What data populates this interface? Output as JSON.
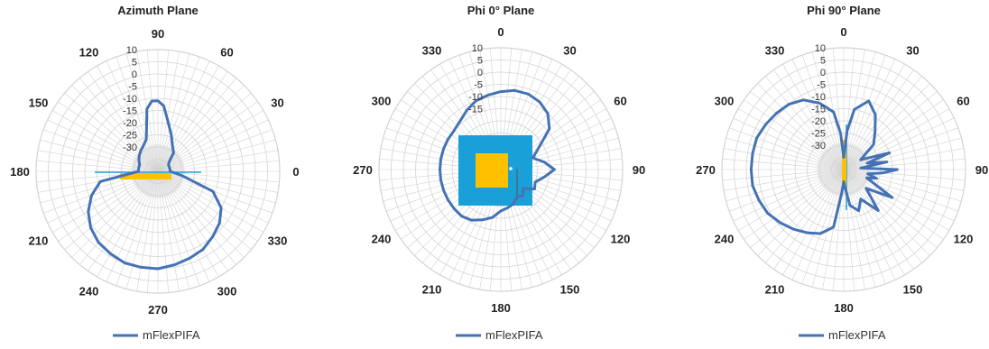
{
  "colors": {
    "trace": "#4472b4",
    "grid": "#d3d3d3",
    "inset_blue": "#1aa0d8",
    "inset_yellow": "#ffc000"
  },
  "chart_data": [
    {
      "type": "polar-line",
      "title": "Azimuth Plane",
      "radial_ticks": [
        "10",
        "5",
        "0",
        "-5",
        "-10",
        "-15",
        "-20",
        "-25",
        "-30"
      ],
      "rlim": [
        -40,
        10
      ],
      "angle_labels": [
        "90",
        "60",
        "30",
        "0",
        "330",
        "300",
        "270",
        "240",
        "210",
        "180",
        "150",
        "120"
      ],
      "legend": "mFlexPIFA",
      "series": [
        {
          "name": "mFlexPIFA",
          "angles": [
            0,
            10,
            20,
            30,
            40,
            50,
            60,
            70,
            80,
            85,
            90,
            95,
            100,
            105,
            110,
            120,
            130,
            140,
            150,
            160,
            170,
            180,
            190,
            200,
            210,
            220,
            230,
            240,
            250,
            260,
            270,
            280,
            290,
            300,
            310,
            320,
            330,
            340,
            350,
            360
          ],
          "values": [
            -35,
            -35,
            -35,
            -35,
            -34,
            -30,
            -28,
            -24,
            -18,
            -13,
            -11,
            -11,
            -14,
            -22,
            -26,
            -28,
            -29,
            -30,
            -31,
            -32,
            -32,
            -32,
            -16,
            -11,
            -7,
            -4,
            -2,
            -1,
            0,
            0,
            0,
            -1,
            -2,
            -3,
            -5,
            -7,
            -10,
            -16,
            -30,
            -35
          ]
        }
      ],
      "inset": "horizontal-bar"
    },
    {
      "type": "polar-line",
      "title": "Phi 0° Plane",
      "radial_ticks": [
        "10",
        "5",
        "0",
        "-5",
        "-10",
        "-15"
      ],
      "rlim": [
        -40,
        10
      ],
      "angle_labels": [
        "0",
        "30",
        "60",
        "90",
        "120",
        "150",
        "180",
        "210",
        "240",
        "270",
        "300",
        "330"
      ],
      "legend": "mFlexPIFA",
      "series": [
        {
          "name": "mFlexPIFA",
          "angles": [
            0,
            10,
            20,
            30,
            40,
            50,
            60,
            70,
            80,
            90,
            100,
            110,
            120,
            130,
            140,
            150,
            160,
            170,
            180,
            190,
            200,
            210,
            220,
            230,
            240,
            250,
            260,
            270,
            280,
            290,
            300,
            310,
            320,
            330,
            340,
            350,
            360
          ],
          "values": [
            -8,
            -7,
            -7,
            -8,
            -10,
            -14,
            -22,
            -26,
            -22,
            -18,
            -22,
            -25,
            -24,
            -28,
            -26,
            -27,
            -25,
            -24,
            -23,
            -20,
            -18,
            -16,
            -15,
            -15,
            -15,
            -15,
            -15,
            -15,
            -15,
            -15,
            -15,
            -15,
            -14,
            -12,
            -10,
            -9,
            -8
          ]
        }
      ],
      "inset": "square"
    },
    {
      "type": "polar-line",
      "title": "Phi 90° Plane",
      "radial_ticks": [
        "10",
        "5",
        "0",
        "-5",
        "-10",
        "-15",
        "-20",
        "-25",
        "-30"
      ],
      "rlim": [
        -40,
        10
      ],
      "angle_labels": [
        "0",
        "30",
        "60",
        "90",
        "120",
        "150",
        "180",
        "210",
        "240",
        "270",
        "300",
        "330"
      ],
      "legend": "mFlexPIFA",
      "series": [
        {
          "name": "mFlexPIFA",
          "angles": [
            0,
            5,
            10,
            20,
            30,
            40,
            50,
            60,
            70,
            75,
            80,
            85,
            90,
            95,
            100,
            105,
            110,
            120,
            130,
            140,
            150,
            160,
            170,
            175,
            180,
            185,
            190,
            200,
            210,
            220,
            230,
            240,
            250,
            260,
            270,
            280,
            290,
            300,
            310,
            320,
            330,
            340,
            350,
            355,
            360
          ],
          "values": [
            -35,
            -24,
            -15,
            -10,
            -14,
            -20,
            -24,
            -32,
            -20,
            -30,
            -22,
            -33,
            -18,
            -24,
            -30,
            -26,
            -30,
            -17,
            -28,
            -18,
            -26,
            -22,
            -25,
            -32,
            -35,
            -30,
            -16,
            -12,
            -10,
            -8,
            -6,
            -4,
            -3,
            -2,
            -2,
            -2,
            -2,
            -3,
            -4,
            -5,
            -7,
            -11,
            -16,
            -25,
            -35
          ]
        }
      ],
      "inset": "vertical-bar"
    }
  ]
}
